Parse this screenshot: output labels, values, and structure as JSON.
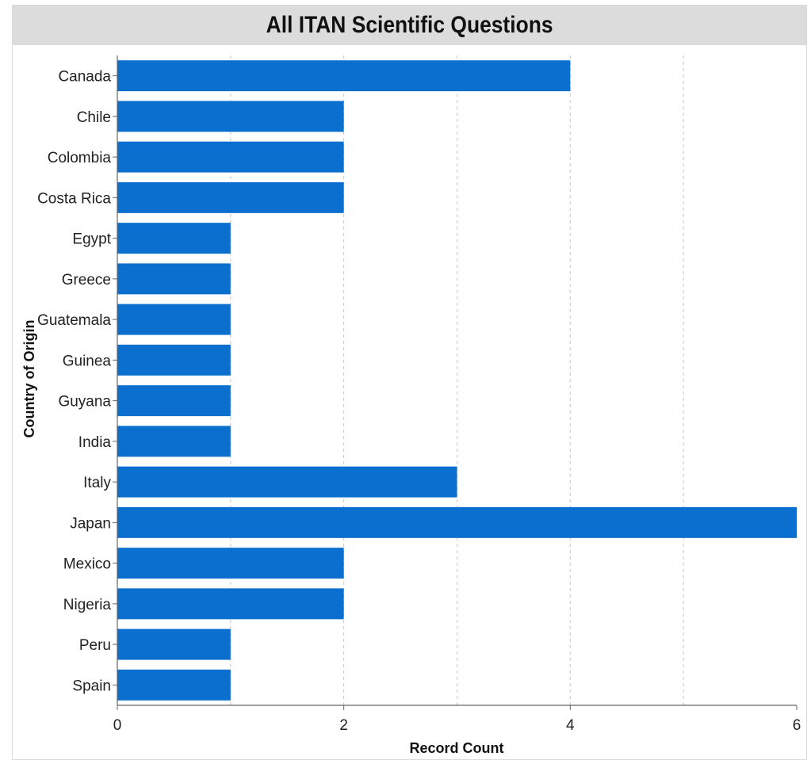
{
  "chart_data": {
    "type": "bar",
    "orientation": "horizontal",
    "title": "All ITAN Scientific Questions",
    "xlabel": "Record Count",
    "ylabel": "Country of Origin",
    "categories": [
      "Canada",
      "Chile",
      "Colombia",
      "Costa Rica",
      "Egypt",
      "Greece",
      "Guatemala",
      "Guinea",
      "Guyana",
      "India",
      "Italy",
      "Japan",
      "Mexico",
      "Nigeria",
      "Peru",
      "Spain"
    ],
    "values": [
      4,
      2,
      2,
      2,
      1,
      1,
      1,
      1,
      1,
      1,
      3,
      6,
      2,
      2,
      1,
      1
    ],
    "xlim": [
      0,
      6
    ],
    "xticks": [
      0,
      2,
      4,
      6
    ],
    "gridlines": [
      1,
      2,
      3,
      4,
      5
    ],
    "grid": true,
    "legend": "none",
    "bar_color": "#0b6fcf"
  }
}
